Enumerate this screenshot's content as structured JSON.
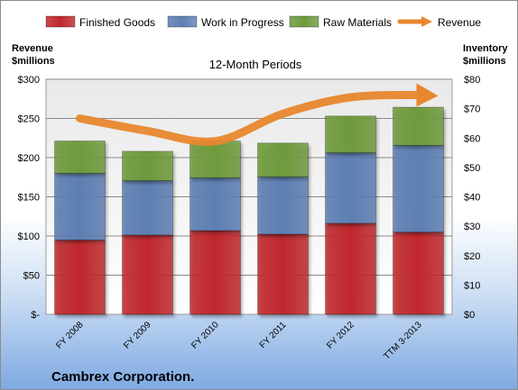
{
  "chart_data": {
    "type": "bar",
    "stacked": true,
    "title": "12-Month Periods",
    "categories": [
      "FY 2008",
      "FY 2009",
      "FY 2010",
      "FY 2011",
      "FY 2012",
      "TTM 3-2013"
    ],
    "series": [
      {
        "name": "Finished Goods",
        "axis": "right",
        "color": "#c0282d",
        "values": [
          25.3,
          27.0,
          28.5,
          27.3,
          31.0,
          28.0
        ]
      },
      {
        "name": "Work in Progress",
        "axis": "right",
        "color": "#5d7fb3",
        "values": [
          22.7,
          18.5,
          18.0,
          19.5,
          24.0,
          29.5
        ]
      },
      {
        "name": "Raw Materials",
        "axis": "right",
        "color": "#6f9a3c",
        "values": [
          11.0,
          10.0,
          12.5,
          11.5,
          12.5,
          13.0
        ]
      },
      {
        "name": "Revenue",
        "axis": "left",
        "type": "line",
        "color": "#e8872d",
        "values": [
          250,
          234,
          221,
          256,
          277,
          280
        ]
      }
    ],
    "y_left": {
      "label_line1": "Revenue",
      "label_line2": "$millions",
      "lim": [
        0,
        300
      ],
      "ticks": [
        "$-",
        "$50",
        "$100",
        "$150",
        "$200",
        "$250",
        "$300"
      ]
    },
    "y_right": {
      "label_line1": "Inventory",
      "label_line2": "$millions",
      "lim": [
        0,
        80
      ],
      "ticks": [
        "$0",
        "$10",
        "$20",
        "$30",
        "$40",
        "$50",
        "$60",
        "$70",
        "$80"
      ]
    },
    "grid": true,
    "legend": "top"
  },
  "footer": "Cambrex Corporation."
}
